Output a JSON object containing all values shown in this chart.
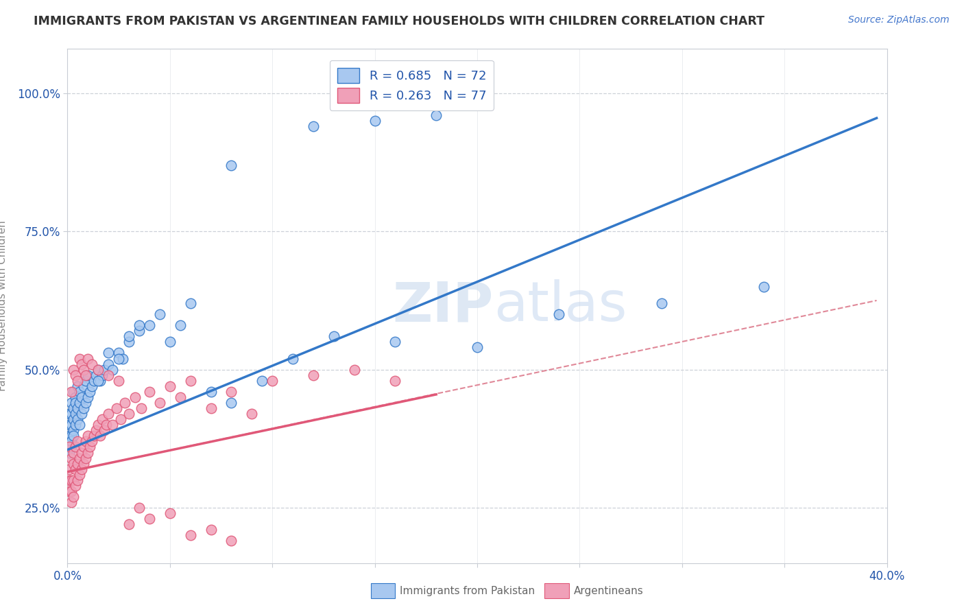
{
  "title": "IMMIGRANTS FROM PAKISTAN VS ARGENTINEAN FAMILY HOUSEHOLDS WITH CHILDREN CORRELATION CHART",
  "source_text": "Source: ZipAtlas.com",
  "ylabel": "Family Households with Children",
  "legend1_label": "R = 0.685   N = 72",
  "legend2_label": "R = 0.263   N = 77",
  "legend1_series": "Immigrants from Pakistan",
  "legend2_series": "Argentineans",
  "blue_color": "#A8C8F0",
  "pink_color": "#F0A0B8",
  "blue_line_color": "#3378C8",
  "pink_line_color": "#E05878",
  "dashed_line_color": "#E08898",
  "legend_text_color": "#2255AA",
  "background_color": "#FFFFFF",
  "grid_color": "#C8CCD4",
  "title_color": "#333333",
  "source_color": "#4477CC",
  "blue_scatter_x": [
    0.001,
    0.001,
    0.001,
    0.001,
    0.001,
    0.002,
    0.002,
    0.002,
    0.002,
    0.002,
    0.002,
    0.003,
    0.003,
    0.003,
    0.003,
    0.003,
    0.004,
    0.004,
    0.004,
    0.004,
    0.005,
    0.005,
    0.005,
    0.006,
    0.006,
    0.006,
    0.007,
    0.007,
    0.008,
    0.008,
    0.009,
    0.009,
    0.01,
    0.01,
    0.011,
    0.012,
    0.013,
    0.014,
    0.015,
    0.016,
    0.017,
    0.018,
    0.02,
    0.022,
    0.025,
    0.027,
    0.03,
    0.035,
    0.04,
    0.045,
    0.05,
    0.055,
    0.06,
    0.07,
    0.08,
    0.095,
    0.11,
    0.13,
    0.16,
    0.2,
    0.24,
    0.29,
    0.34,
    0.025,
    0.03,
    0.035,
    0.08,
    0.12,
    0.15,
    0.18,
    0.015,
    0.02
  ],
  "blue_scatter_y": [
    0.38,
    0.36,
    0.4,
    0.35,
    0.42,
    0.38,
    0.36,
    0.42,
    0.44,
    0.4,
    0.37,
    0.41,
    0.43,
    0.39,
    0.46,
    0.38,
    0.42,
    0.45,
    0.4,
    0.44,
    0.43,
    0.47,
    0.41,
    0.44,
    0.4,
    0.46,
    0.42,
    0.45,
    0.43,
    0.47,
    0.44,
    0.48,
    0.45,
    0.49,
    0.46,
    0.47,
    0.48,
    0.49,
    0.5,
    0.48,
    0.49,
    0.5,
    0.51,
    0.5,
    0.53,
    0.52,
    0.55,
    0.57,
    0.58,
    0.6,
    0.55,
    0.58,
    0.62,
    0.46,
    0.44,
    0.48,
    0.52,
    0.56,
    0.55,
    0.54,
    0.6,
    0.62,
    0.65,
    0.52,
    0.56,
    0.58,
    0.87,
    0.94,
    0.95,
    0.96,
    0.48,
    0.53
  ],
  "pink_scatter_x": [
    0.001,
    0.001,
    0.001,
    0.001,
    0.002,
    0.002,
    0.002,
    0.002,
    0.003,
    0.003,
    0.003,
    0.003,
    0.004,
    0.004,
    0.004,
    0.005,
    0.005,
    0.005,
    0.006,
    0.006,
    0.007,
    0.007,
    0.008,
    0.008,
    0.009,
    0.009,
    0.01,
    0.01,
    0.011,
    0.012,
    0.013,
    0.014,
    0.015,
    0.016,
    0.017,
    0.018,
    0.019,
    0.02,
    0.022,
    0.024,
    0.026,
    0.028,
    0.03,
    0.033,
    0.036,
    0.04,
    0.045,
    0.05,
    0.055,
    0.06,
    0.07,
    0.08,
    0.09,
    0.1,
    0.12,
    0.14,
    0.16,
    0.002,
    0.003,
    0.004,
    0.005,
    0.006,
    0.007,
    0.008,
    0.009,
    0.01,
    0.012,
    0.015,
    0.02,
    0.025,
    0.03,
    0.05,
    0.07,
    0.04,
    0.035,
    0.06,
    0.08
  ],
  "pink_scatter_y": [
    0.36,
    0.32,
    0.28,
    0.3,
    0.34,
    0.3,
    0.26,
    0.28,
    0.33,
    0.3,
    0.27,
    0.35,
    0.32,
    0.29,
    0.36,
    0.33,
    0.3,
    0.37,
    0.34,
    0.31,
    0.35,
    0.32,
    0.36,
    0.33,
    0.37,
    0.34,
    0.35,
    0.38,
    0.36,
    0.37,
    0.38,
    0.39,
    0.4,
    0.38,
    0.41,
    0.39,
    0.4,
    0.42,
    0.4,
    0.43,
    0.41,
    0.44,
    0.42,
    0.45,
    0.43,
    0.46,
    0.44,
    0.47,
    0.45,
    0.48,
    0.43,
    0.46,
    0.42,
    0.48,
    0.49,
    0.5,
    0.48,
    0.46,
    0.5,
    0.49,
    0.48,
    0.52,
    0.51,
    0.5,
    0.49,
    0.52,
    0.51,
    0.5,
    0.49,
    0.48,
    0.22,
    0.24,
    0.21,
    0.23,
    0.25,
    0.2,
    0.19
  ],
  "xmin": 0.0,
  "xmax": 0.4,
  "ymin": 0.15,
  "ymax": 1.08,
  "blue_line_x0": 0.0,
  "blue_line_x1": 0.395,
  "blue_line_y0": 0.355,
  "blue_line_y1": 0.955,
  "pink_line_x0": 0.0,
  "pink_line_x1": 0.18,
  "pink_line_y0": 0.315,
  "pink_line_y1": 0.455,
  "dash_line_x0": 0.0,
  "dash_line_x1": 0.395,
  "dash_line_y0": 0.315,
  "dash_line_y1": 0.625,
  "yticks": [
    0.25,
    0.5,
    0.75,
    1.0
  ],
  "xticks": [
    0.0,
    0.05,
    0.1,
    0.15,
    0.2,
    0.25,
    0.3,
    0.35,
    0.4
  ]
}
